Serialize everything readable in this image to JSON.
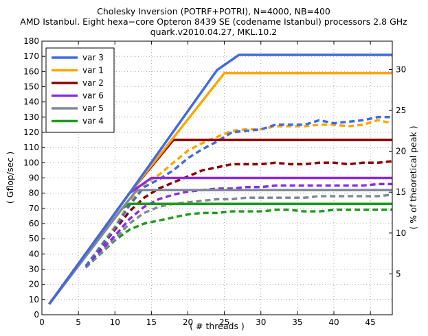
{
  "chart_data": {
    "type": "line",
    "title_lines": [
      "Cholesky Inversion (POTRF+POTRI), N=4000, NB=400",
      "AMD Istanbul. Eight hexa−core Opteron 8439 SE (codename Istanbul) processors 2.8 GHz",
      "quark.v2010.04.27, MKL.10.2"
    ],
    "xlabel": "( # threads )",
    "ylabel": "( Gflop/sec )",
    "y2label": "( % of theoretical peak )",
    "xlim": [
      0,
      48
    ],
    "ylim": [
      0,
      180
    ],
    "y2lim": [
      0,
      33.48
    ],
    "xticks": [
      0,
      5,
      10,
      15,
      20,
      25,
      30,
      35,
      40,
      45
    ],
    "yticks": [
      0,
      10,
      20,
      30,
      40,
      50,
      60,
      70,
      80,
      90,
      100,
      110,
      120,
      130,
      140,
      150,
      160,
      170,
      180
    ],
    "y2ticks": [
      5,
      10,
      15,
      20,
      25,
      30
    ],
    "grid": true,
    "legend_position": "top-left",
    "series": [
      {
        "name": "var 3",
        "color": "#4169E1",
        "style": "solid",
        "x": [
          1,
          12,
          24,
          27,
          48
        ],
        "y": [
          7,
          80,
          161,
          171,
          171
        ]
      },
      {
        "name": "var 1",
        "color": "#FFA500",
        "style": "solid",
        "x": [
          1,
          12,
          25,
          48
        ],
        "y": [
          7,
          80,
          159,
          159
        ]
      },
      {
        "name": "var 2",
        "color": "#8B0000",
        "style": "solid",
        "x": [
          1,
          12,
          18,
          48
        ],
        "y": [
          7,
          80,
          115,
          115
        ]
      },
      {
        "name": "var 6",
        "color": "#8A2BE2",
        "style": "solid",
        "x": [
          1,
          12,
          15,
          48
        ],
        "y": [
          7,
          80,
          90,
          90
        ]
      },
      {
        "name": "var 5",
        "color": "#808A96",
        "style": "solid",
        "x": [
          1,
          11,
          13,
          48
        ],
        "y": [
          7,
          70,
          82,
          82
        ]
      },
      {
        "name": "var 4",
        "color": "#1F9A1F",
        "style": "solid",
        "x": [
          1,
          11,
          12,
          48
        ],
        "y": [
          7,
          70,
          73,
          73
        ]
      },
      {
        "name": "var 3",
        "color": "#4169E1",
        "style": "dashed",
        "x": [
          6,
          10,
          12,
          14,
          16,
          18,
          20,
          22,
          24,
          26,
          28,
          30,
          32,
          34,
          36,
          38,
          40,
          42,
          44,
          46,
          48
        ],
        "y": [
          32,
          57,
          72,
          84,
          89,
          95,
          103,
          109,
          114,
          120,
          121,
          122,
          125,
          125,
          125,
          128,
          126,
          127,
          128,
          130,
          130
        ]
      },
      {
        "name": "var 1",
        "color": "#FFA500",
        "style": "dashed",
        "x": [
          6,
          10,
          12,
          14,
          16,
          18,
          20,
          22,
          24,
          26,
          28,
          30,
          32,
          34,
          36,
          38,
          40,
          42,
          44,
          46,
          48
        ],
        "y": [
          32,
          58,
          74,
          86,
          92,
          100,
          108,
          113,
          117,
          121,
          122,
          122,
          124,
          124,
          124,
          125,
          125,
          124,
          125,
          128,
          126
        ]
      },
      {
        "name": "var 2",
        "color": "#8B0000",
        "style": "dashed",
        "x": [
          6,
          10,
          12,
          14,
          16,
          18,
          20,
          22,
          24,
          26,
          28,
          30,
          32,
          34,
          36,
          38,
          40,
          42,
          44,
          46,
          48
        ],
        "y": [
          32,
          56,
          68,
          77,
          83,
          87,
          91,
          95,
          97,
          99,
          99,
          99,
          100,
          99,
          99,
          100,
          100,
          99,
          100,
          100,
          101
        ]
      },
      {
        "name": "var 6",
        "color": "#8A2BE2",
        "style": "dashed",
        "x": [
          6,
          10,
          12,
          14,
          16,
          18,
          20,
          22,
          24,
          26,
          28,
          30,
          32,
          34,
          36,
          38,
          40,
          42,
          44,
          46,
          48
        ],
        "y": [
          32,
          52,
          63,
          71,
          76,
          79,
          81,
          82,
          83,
          83,
          84,
          84,
          85,
          85,
          85,
          85,
          85,
          85,
          85,
          86,
          86
        ]
      },
      {
        "name": "var 5",
        "color": "#808A96",
        "style": "dashed",
        "x": [
          6,
          10,
          12,
          14,
          16,
          18,
          20,
          22,
          24,
          26,
          28,
          30,
          32,
          34,
          36,
          38,
          40,
          42,
          44,
          46,
          48
        ],
        "y": [
          31,
          50,
          60,
          67,
          71,
          73,
          74,
          75,
          76,
          76,
          77,
          77,
          77,
          77,
          77,
          78,
          78,
          78,
          78,
          78,
          79
        ]
      },
      {
        "name": "var 4",
        "color": "#1F9A1F",
        "style": "dashed",
        "x": [
          6,
          10,
          12,
          14,
          16,
          18,
          20,
          22,
          24,
          26,
          28,
          30,
          32,
          34,
          36,
          38,
          40,
          42,
          44,
          46,
          48
        ],
        "y": [
          31,
          49,
          56,
          60,
          62,
          64,
          66,
          67,
          67,
          68,
          68,
          68,
          69,
          69,
          68,
          68,
          69,
          69,
          69,
          69,
          69
        ]
      }
    ]
  }
}
